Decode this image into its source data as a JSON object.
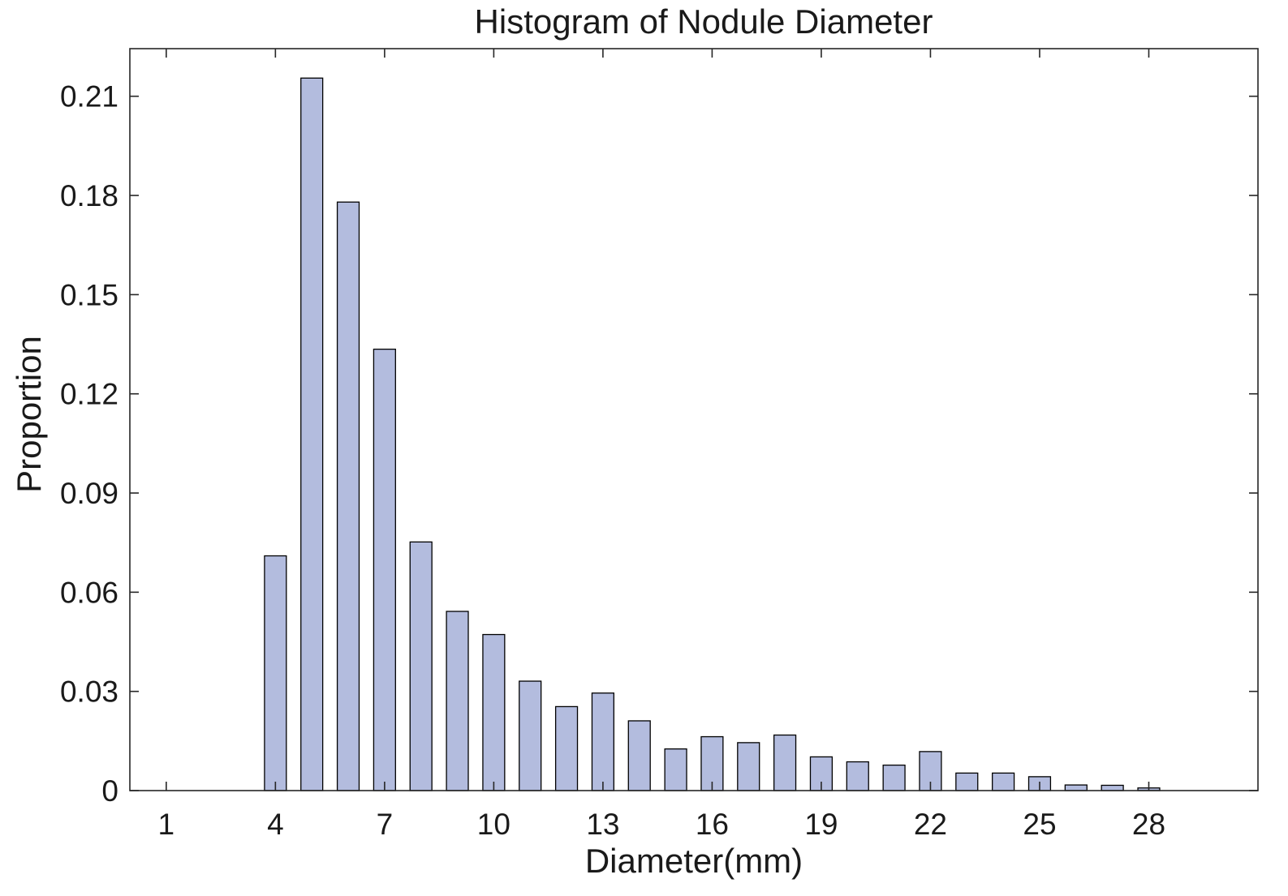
{
  "chart_data": {
    "type": "bar",
    "title": "Histogram of Nodule Diameter",
    "xlabel": "Diameter(mm)",
    "ylabel": "Proportion",
    "xlim": [
      0,
      31
    ],
    "ylim": [
      0,
      0.2244
    ],
    "xticks": [
      1,
      4,
      7,
      10,
      13,
      16,
      19,
      22,
      25,
      28
    ],
    "xtick_labels": [
      "1",
      "4",
      "7",
      "10",
      "13",
      "16",
      "19",
      "22",
      "25",
      "28"
    ],
    "yticks": [
      0,
      0.03,
      0.06,
      0.09,
      0.12,
      0.15,
      0.18,
      0.21
    ],
    "ytick_labels": [
      "0",
      "0.03",
      "0.06",
      "0.09",
      "0.12",
      "0.15",
      "0.18",
      "0.21"
    ],
    "bar_width": 0.6,
    "bar_color": "#b3bcde",
    "edge_color": "#000000",
    "grid": false,
    "x": [
      4,
      5,
      6,
      7,
      8,
      9,
      10,
      11,
      12,
      13,
      14,
      15,
      16,
      17,
      18,
      19,
      20,
      21,
      22,
      23,
      24,
      25,
      26,
      27,
      28
    ],
    "values": [
      0.071,
      0.2155,
      0.178,
      0.1335,
      0.0752,
      0.0542,
      0.0472,
      0.0331,
      0.0254,
      0.0295,
      0.0211,
      0.0126,
      0.0163,
      0.0145,
      0.0168,
      0.0102,
      0.0087,
      0.0077,
      0.0118,
      0.0053,
      0.0053,
      0.0042,
      0.0017,
      0.0016,
      0.0008
    ]
  }
}
